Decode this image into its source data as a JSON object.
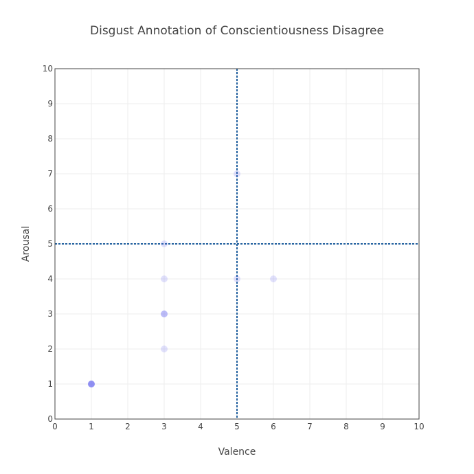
{
  "chart_data": {
    "type": "scatter",
    "title": "Disgust Annotation of Conscientiousness Disagree",
    "xlabel": "Valence",
    "ylabel": "Arousal",
    "xlim": [
      0,
      10
    ],
    "ylim": [
      0,
      10
    ],
    "x_ticks": [
      0,
      1,
      2,
      3,
      4,
      5,
      6,
      7,
      8,
      9,
      10
    ],
    "y_ticks": [
      0,
      1,
      2,
      3,
      4,
      5,
      6,
      7,
      8,
      9,
      10
    ],
    "grid": true,
    "reference_lines": {
      "x": 5,
      "y": 5,
      "color": "#1f5f9e",
      "style": "dotted"
    },
    "point_color": "#6b6bef",
    "points": [
      {
        "x": 1,
        "y": 1,
        "opacity": 0.75
      },
      {
        "x": 3,
        "y": 2,
        "opacity": 0.2
      },
      {
        "x": 3,
        "y": 3,
        "opacity": 0.45
      },
      {
        "x": 3,
        "y": 4,
        "opacity": 0.2
      },
      {
        "x": 3,
        "y": 5,
        "opacity": 0.2
      },
      {
        "x": 5,
        "y": 4,
        "opacity": 0.2
      },
      {
        "x": 5,
        "y": 7,
        "opacity": 0.2
      },
      {
        "x": 6,
        "y": 4,
        "opacity": 0.2
      }
    ]
  }
}
